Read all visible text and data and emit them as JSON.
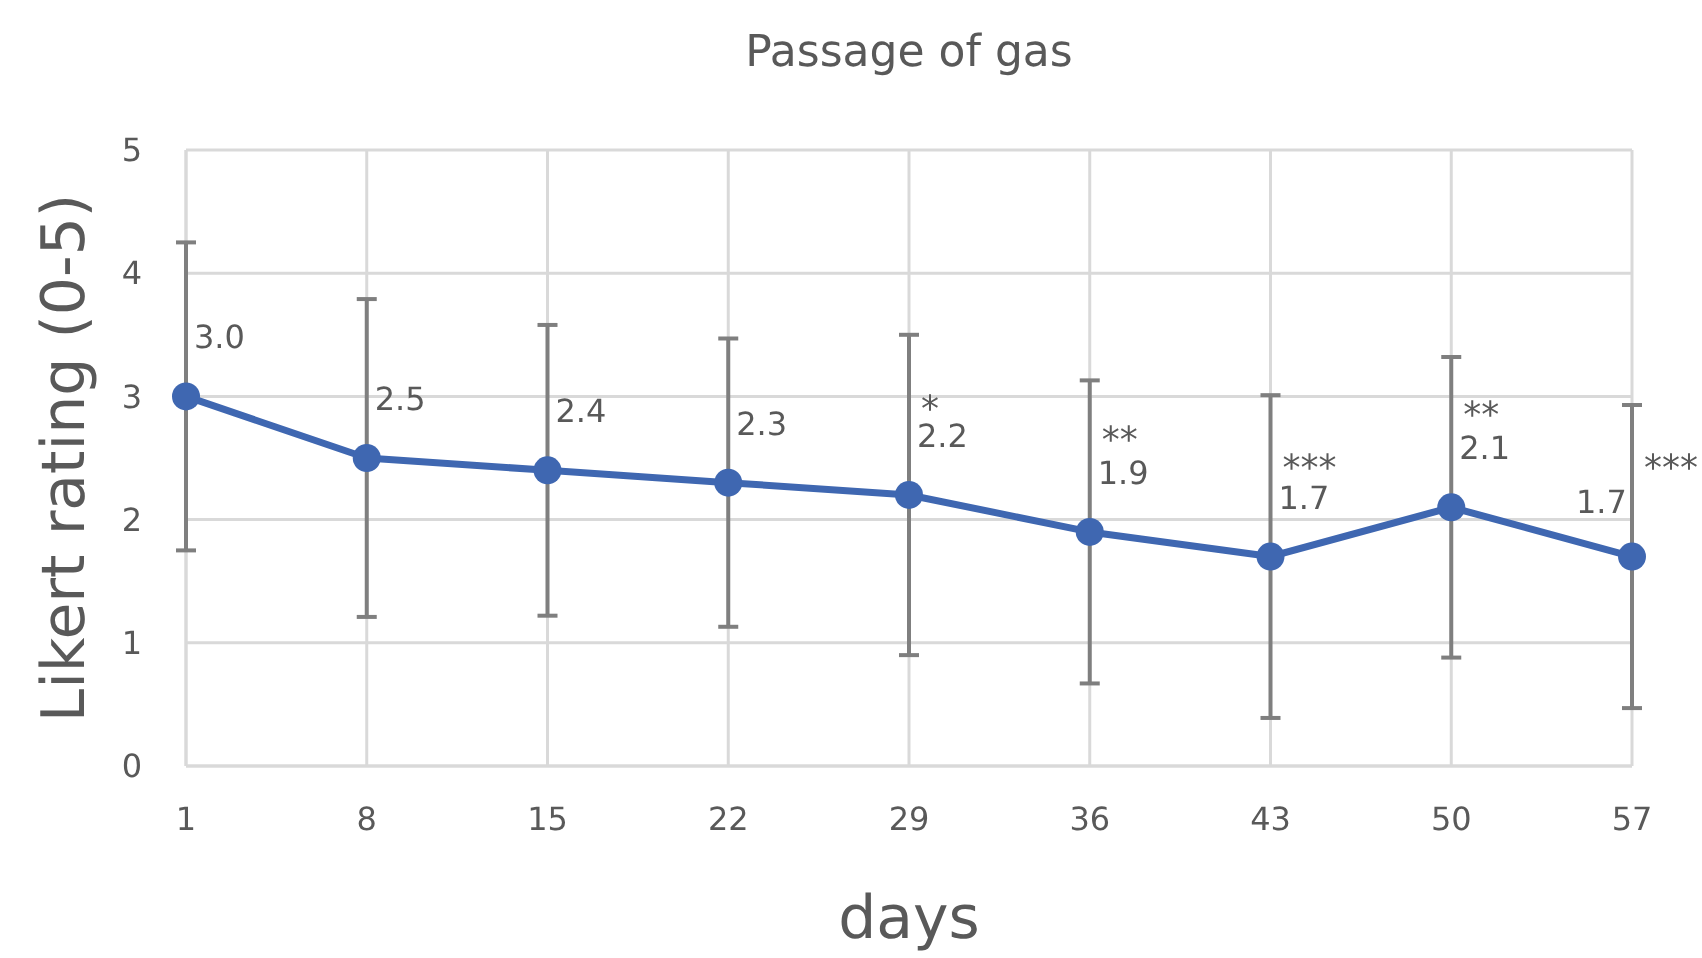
{
  "chart_data": {
    "type": "line",
    "title": "Passage of gas",
    "xlabel": "days",
    "ylabel": "Likert rating (0-5)",
    "x": [
      1,
      8,
      15,
      22,
      29,
      36,
      43,
      50,
      57
    ],
    "series": [
      {
        "color": "#3f67b1",
        "values": [
          3.0,
          2.5,
          2.4,
          2.3,
          2.2,
          1.9,
          1.7,
          2.1,
          1.7
        ],
        "errors": [
          1.25,
          1.29,
          1.18,
          1.17,
          1.3,
          1.23,
          1.31,
          1.22,
          1.23
        ],
        "value_labels": [
          "3.0",
          "2.5",
          "2.4",
          "2.3",
          "2.2",
          "1.9",
          "1.7",
          "2.1",
          "1.7"
        ]
      }
    ],
    "xlim": [
      1,
      57
    ],
    "xticks": [
      1,
      8,
      15,
      22,
      29,
      36,
      43,
      50,
      57
    ],
    "ylim": [
      0,
      5
    ],
    "yticks": [
      0,
      1,
      2,
      3,
      4,
      5
    ],
    "grid": true,
    "marker": "circle",
    "line_style": "solid",
    "annotations": [
      {
        "text": "*",
        "x": 29,
        "y": 2.9
      },
      {
        "text": "**",
        "x": 36,
        "y": 2.65
      },
      {
        "text": "***",
        "x": 43,
        "y": 2.42
      },
      {
        "text": "**",
        "x": 50,
        "y": 2.85
      },
      {
        "text": "***",
        "x": 57,
        "y": 2.42
      }
    ]
  }
}
